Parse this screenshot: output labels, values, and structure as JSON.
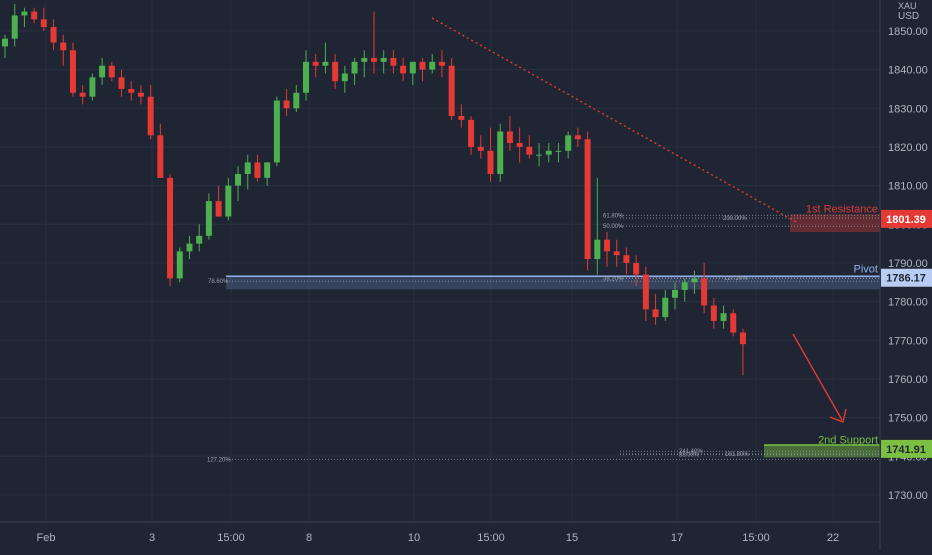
{
  "chart_data": {
    "type": "candlestick",
    "currency": "USD",
    "instrument_label": "XAU",
    "y_ticks": [
      "1850.00",
      "1840.00",
      "1830.00",
      "1820.00",
      "1810.00",
      "1800.00",
      "1790.00",
      "1780.00",
      "1770.00",
      "1760.00",
      "1750.00",
      "1740.00",
      "1730.00"
    ],
    "ylim": [
      1723,
      1858
    ],
    "x_ticks": [
      "Feb",
      "3",
      "15:00",
      "8",
      "10",
      "15:00",
      "15",
      "17",
      "15:00",
      "22"
    ],
    "candles": [
      [
        1846,
        1849,
        1843,
        1848
      ],
      [
        1848,
        1857,
        1846,
        1854
      ],
      [
        1854,
        1856,
        1851,
        1855
      ],
      [
        1855,
        1856,
        1852,
        1853
      ],
      [
        1853,
        1856,
        1850,
        1851
      ],
      [
        1851,
        1853,
        1845,
        1847
      ],
      [
        1847,
        1849,
        1841,
        1845
      ],
      [
        1845,
        1847,
        1833,
        1834
      ],
      [
        1834,
        1836,
        1831,
        1833
      ],
      [
        1833,
        1839,
        1832,
        1838
      ],
      [
        1838,
        1843,
        1836,
        1841
      ],
      [
        1841,
        1842,
        1837,
        1838
      ],
      [
        1838,
        1840,
        1833,
        1835
      ],
      [
        1835,
        1837,
        1832,
        1834
      ],
      [
        1834,
        1836,
        1831,
        1833
      ],
      [
        1833,
        1836,
        1822,
        1823
      ],
      [
        1823,
        1826,
        1812,
        1812
      ],
      [
        1812,
        1813,
        1784,
        1786
      ],
      [
        1786,
        1794,
        1785,
        1793
      ],
      [
        1793,
        1797,
        1791,
        1795
      ],
      [
        1795,
        1800,
        1793,
        1797
      ],
      [
        1797,
        1808,
        1796,
        1806
      ],
      [
        1806,
        1810,
        1802,
        1802
      ],
      [
        1802,
        1812,
        1801,
        1810
      ],
      [
        1810,
        1815,
        1806,
        1813
      ],
      [
        1813,
        1818,
        1809,
        1816
      ],
      [
        1816,
        1818,
        1811,
        1812
      ],
      [
        1812,
        1816,
        1810,
        1816
      ],
      [
        1816,
        1833,
        1815,
        1832
      ],
      [
        1832,
        1835,
        1828,
        1830
      ],
      [
        1830,
        1836,
        1829,
        1834
      ],
      [
        1834,
        1845,
        1832,
        1842
      ],
      [
        1842,
        1844,
        1838,
        1841
      ],
      [
        1841,
        1847,
        1839,
        1842
      ],
      [
        1842,
        1844,
        1835,
        1837
      ],
      [
        1837,
        1841,
        1834,
        1839
      ],
      [
        1839,
        1843,
        1836,
        1842
      ],
      [
        1842,
        1845,
        1838,
        1843
      ],
      [
        1843,
        1855,
        1839,
        1842
      ],
      [
        1842,
        1845,
        1839,
        1843
      ],
      [
        1843,
        1845,
        1839,
        1841
      ],
      [
        1841,
        1843,
        1837,
        1839
      ],
      [
        1839,
        1842,
        1836,
        1842
      ],
      [
        1842,
        1843,
        1837,
        1840
      ],
      [
        1840,
        1844,
        1839,
        1842
      ],
      [
        1842,
        1845,
        1838,
        1841
      ],
      [
        1841,
        1843,
        1827,
        1828
      ],
      [
        1828,
        1831,
        1825,
        1827
      ],
      [
        1827,
        1828,
        1818,
        1820
      ],
      [
        1820,
        1823,
        1817,
        1819
      ],
      [
        1819,
        1825,
        1811,
        1813
      ],
      [
        1813,
        1826,
        1811,
        1824
      ],
      [
        1824,
        1828,
        1819,
        1821
      ],
      [
        1821,
        1825,
        1816,
        1820
      ],
      [
        1820,
        1823,
        1817,
        1818
      ],
      [
        1818,
        1821,
        1815,
        1818
      ],
      [
        1818,
        1821,
        1816,
        1819
      ],
      [
        1819,
        1821,
        1816,
        1819
      ],
      [
        1819,
        1824,
        1817,
        1823
      ],
      [
        1823,
        1825,
        1820,
        1822
      ],
      [
        1822,
        1824,
        1788,
        1791
      ],
      [
        1791,
        1812,
        1787,
        1796
      ],
      [
        1796,
        1798,
        1789,
        1793
      ],
      [
        1793,
        1796,
        1789,
        1792
      ],
      [
        1792,
        1794,
        1787,
        1790
      ],
      [
        1790,
        1792,
        1784,
        1787
      ],
      [
        1787,
        1789,
        1775,
        1778
      ],
      [
        1778,
        1782,
        1774,
        1776
      ],
      [
        1776,
        1783,
        1775,
        1781
      ],
      [
        1781,
        1785,
        1778,
        1783
      ],
      [
        1783,
        1786,
        1780,
        1785
      ],
      [
        1785,
        1788,
        1782,
        1786
      ],
      [
        1786,
        1790,
        1777,
        1779
      ],
      [
        1779,
        1781,
        1773,
        1775
      ],
      [
        1775,
        1779,
        1773,
        1777
      ],
      [
        1777,
        1778,
        1771,
        1772
      ],
      [
        1772,
        1773,
        1761,
        1769
      ]
    ],
    "levels": {
      "resistance": {
        "label": "1st Resistance",
        "value": "1801.39"
      },
      "pivot": {
        "label": "Pivot",
        "value": "1786.17"
      },
      "support": {
        "label": "2nd Support",
        "value": "1741.91"
      }
    },
    "fib_labels": [
      "78.60%",
      "38.20%",
      "127.20%",
      "61.80%",
      "50.00%",
      "200.00%",
      "241.40%",
      "88.00%",
      "127.20%",
      "161.80%"
    ],
    "colors": {
      "up": "#4caf50",
      "down": "#e53935",
      "resistance": "#e53935",
      "pivot": "#8fb3f0",
      "support": "#7bc043",
      "background": "#1f2533"
    }
  }
}
